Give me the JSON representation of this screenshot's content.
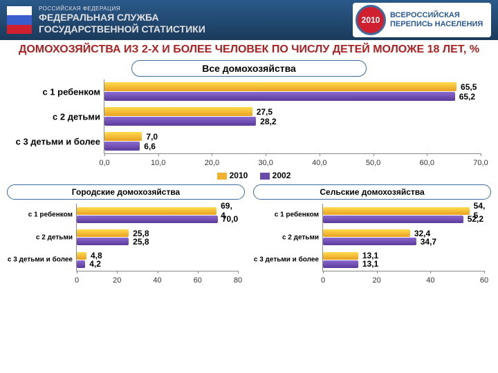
{
  "header": {
    "small": "РОССИЙСКАЯ ФЕДЕРАЦИЯ",
    "line1": "ФЕДЕРАЛЬНАЯ СЛУЖБА",
    "line2": "ГОСУДАРСТВЕННОЙ СТАТИСТИКИ",
    "flag_colors": [
      "#ffffff",
      "#3a5fcd",
      "#d02030"
    ],
    "logo_year": "2010",
    "logo_text1": "ВСЕРОССИЙСКАЯ",
    "logo_text2": "ПЕРЕПИСЬ НАСЕЛЕНИЯ"
  },
  "title": "ДОМОХОЗЯЙСТВА ИЗ 2-Х И БОЛЕЕ ЧЕЛОВЕК ПО ЧИСЛУ ДЕТЕЙ МОЛОЖЕ 18 ЛЕТ, %",
  "legend": {
    "s1": "2010",
    "s2": "2002",
    "c1": "#f0b030",
    "c2": "#6a4aaa"
  },
  "chart_all": {
    "pill": "Все домохозяйства",
    "categories": [
      "с 1 ребенком",
      "с 2 детьми",
      "с 3  детьми и более"
    ],
    "v2010": [
      65.5,
      27.5,
      7.0
    ],
    "v2002": [
      65.2,
      28.2,
      6.6
    ],
    "labels2010": [
      "65,5",
      "27,5",
      "7,0"
    ],
    "labels2002": [
      "65,2",
      "28,2",
      "6,6"
    ],
    "xmax": 70,
    "xstep": 10
  },
  "chart_urban": {
    "pill": "Городские домохозяйства",
    "categories": [
      "с 1 ребенком",
      "с 2 детьми",
      "с 3  детьми и более"
    ],
    "v2010": [
      69.4,
      25.8,
      4.8
    ],
    "v2002": [
      70.0,
      25.8,
      4.2
    ],
    "labels2010": [
      "69, 4",
      "25,8",
      "4,8"
    ],
    "labels2002": [
      "70,0",
      "25,8",
      "4,2"
    ],
    "xmax": 80,
    "xstep": 20
  },
  "chart_rural": {
    "pill": "Сельские домохозяйства",
    "categories": [
      "с 1 ребенком",
      "с 2 детьми",
      "с 3  детьми и более"
    ],
    "v2010": [
      54.5,
      32.4,
      13.1
    ],
    "v2002": [
      52.2,
      34.7,
      13.1
    ],
    "labels2010": [
      "54, 5",
      "32,4",
      "13,1"
    ],
    "labels2002": [
      "52,2",
      "34,7",
      "13,1"
    ],
    "xmax": 60,
    "xstep": 20
  },
  "colors": {
    "bar_top_a": "#ffdb4d",
    "bar_top_b": "#e8a020",
    "bar_bot_a": "#8a6ad0",
    "bar_bot_b": "#5a3a9a",
    "title": "#b02020"
  }
}
